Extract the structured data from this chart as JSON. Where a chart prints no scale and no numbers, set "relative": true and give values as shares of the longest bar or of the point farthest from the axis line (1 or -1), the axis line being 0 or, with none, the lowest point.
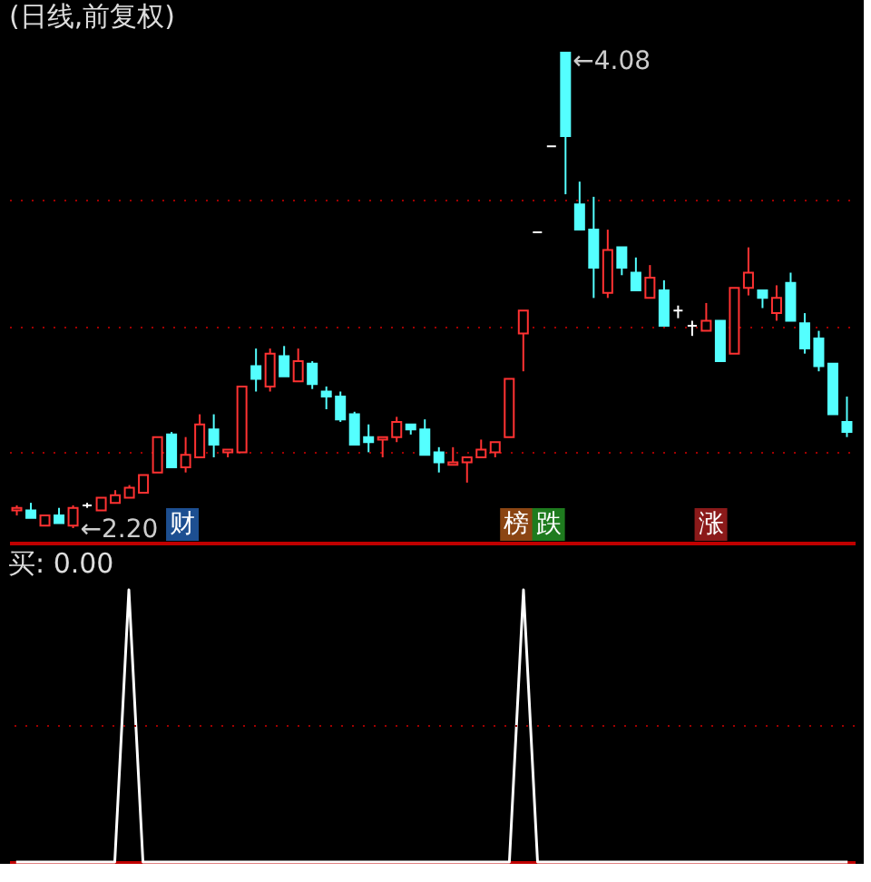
{
  "chart_data": [
    {
      "type": "candlestick",
      "title": "(日线,前复权)",
      "categories": [
        null,
        null,
        null,
        null,
        null,
        null,
        null,
        null,
        null,
        null,
        null,
        null,
        null,
        null,
        null,
        null,
        null,
        null,
        null,
        null,
        null,
        null,
        null,
        null,
        null,
        null,
        null,
        null,
        null,
        null,
        null,
        null,
        null,
        null,
        null,
        null,
        null,
        null,
        null,
        null,
        null,
        null,
        null,
        null,
        null,
        null,
        null,
        null,
        null,
        null,
        null,
        null,
        null,
        null,
        null,
        null,
        null,
        null,
        null,
        null
      ],
      "ohlc": [
        [
          2.27,
          2.29,
          2.25,
          2.28
        ],
        [
          2.27,
          2.3,
          2.24,
          2.24
        ],
        [
          2.21,
          2.25,
          2.21,
          2.25
        ],
        [
          2.25,
          2.28,
          2.22,
          2.22
        ],
        [
          2.21,
          2.29,
          2.2,
          2.28
        ],
        [
          2.29,
          2.3,
          2.28,
          2.29
        ],
        [
          2.27,
          2.32,
          2.27,
          2.32
        ],
        [
          2.3,
          2.35,
          2.3,
          2.33
        ],
        [
          2.32,
          2.37,
          2.32,
          2.36
        ],
        [
          2.34,
          2.41,
          2.34,
          2.41
        ],
        [
          2.42,
          2.56,
          2.42,
          2.56
        ],
        [
          2.57,
          2.58,
          2.44,
          2.44
        ],
        [
          2.44,
          2.56,
          2.42,
          2.49
        ],
        [
          2.48,
          2.65,
          2.48,
          2.61
        ],
        [
          2.59,
          2.65,
          2.48,
          2.53
        ],
        [
          2.5,
          2.51,
          2.48,
          2.51
        ],
        [
          2.5,
          2.76,
          2.5,
          2.76
        ],
        [
          2.84,
          2.91,
          2.74,
          2.79
        ],
        [
          2.76,
          2.91,
          2.74,
          2.89
        ],
        [
          2.88,
          2.92,
          2.8,
          2.8
        ],
        [
          2.78,
          2.91,
          2.78,
          2.86
        ],
        [
          2.85,
          2.86,
          2.75,
          2.77
        ],
        [
          2.74,
          2.76,
          2.67,
          2.72
        ],
        [
          2.72,
          2.74,
          2.62,
          2.63
        ],
        [
          2.65,
          2.66,
          2.53,
          2.53
        ],
        [
          2.56,
          2.61,
          2.5,
          2.54
        ],
        [
          2.55,
          2.56,
          2.48,
          2.56
        ],
        [
          2.56,
          2.64,
          2.54,
          2.62
        ],
        [
          2.61,
          2.61,
          2.57,
          2.59
        ],
        [
          2.59,
          2.63,
          2.49,
          2.49
        ],
        [
          2.5,
          2.52,
          2.42,
          2.46
        ],
        [
          2.45,
          2.52,
          2.45,
          2.46
        ],
        [
          2.46,
          2.48,
          2.38,
          2.48
        ],
        [
          2.48,
          2.55,
          2.48,
          2.51
        ],
        [
          2.5,
          2.54,
          2.48,
          2.54
        ],
        [
          2.56,
          2.79,
          2.56,
          2.79
        ],
        [
          2.97,
          3.06,
          2.82,
          3.06
        ],
        [
          3.37,
          3.37,
          3.37,
          3.37
        ],
        [
          3.71,
          3.71,
          3.71,
          3.71
        ],
        [
          4.08,
          4.08,
          3.52,
          3.75
        ],
        [
          3.48,
          3.57,
          3.38,
          3.38
        ],
        [
          3.38,
          3.51,
          3.11,
          3.23
        ],
        [
          3.13,
          3.38,
          3.11,
          3.3
        ],
        [
          3.31,
          3.31,
          3.2,
          3.23
        ],
        [
          3.21,
          3.27,
          3.14,
          3.14
        ],
        [
          3.11,
          3.24,
          3.11,
          3.19
        ],
        [
          3.14,
          3.18,
          3.0,
          3.0
        ],
        [
          3.06,
          3.08,
          3.03,
          3.06
        ],
        [
          3.0,
          3.02,
          2.96,
          3.0
        ],
        [
          2.98,
          3.09,
          2.98,
          3.02
        ],
        [
          3.02,
          3.02,
          2.86,
          2.86
        ],
        [
          2.89,
          3.15,
          2.89,
          3.15
        ],
        [
          3.15,
          3.31,
          3.12,
          3.21
        ],
        [
          3.14,
          3.14,
          3.07,
          3.11
        ],
        [
          3.05,
          3.16,
          3.02,
          3.11
        ],
        [
          3.17,
          3.21,
          3.02,
          3.02
        ],
        [
          3.01,
          3.05,
          2.89,
          2.91
        ],
        [
          2.95,
          2.98,
          2.82,
          2.84
        ],
        [
          2.85,
          2.85,
          2.65,
          2.65
        ],
        [
          2.62,
          2.72,
          2.56,
          2.58
        ]
      ],
      "colors": [
        "#ff3232",
        "#54ffff",
        "#ff3232",
        "#54ffff",
        "#ff3232",
        "#ffffff",
        "#ff3232",
        "#ff3232",
        "#ff3232",
        "#ff3232",
        "#ff3232",
        "#54ffff",
        "#ff3232",
        "#ff3232",
        "#54ffff",
        "#ff3232",
        "#ff3232",
        "#54ffff",
        "#ff3232",
        "#54ffff",
        "#ff3232",
        "#54ffff",
        "#54ffff",
        "#54ffff",
        "#54ffff",
        "#54ffff",
        "#ff3232",
        "#ff3232",
        "#54ffff",
        "#54ffff",
        "#54ffff",
        "#ff3232",
        "#ff3232",
        "#ff3232",
        "#ff3232",
        "#ff3232",
        "#ff3232",
        "#ffffff",
        "#ffffff",
        "#54ffff",
        "#54ffff",
        "#54ffff",
        "#ff3232",
        "#54ffff",
        "#54ffff",
        "#ff3232",
        "#54ffff",
        "#ffffff",
        "#ffffff",
        "#ff3232",
        "#54ffff",
        "#ff3232",
        "#ff3232",
        "#54ffff",
        "#ff3232",
        "#54ffff",
        "#54ffff",
        "#54ffff",
        "#54ffff",
        "#54ffff"
      ],
      "yticks": [
        {
          "value": 2.5,
          "label": null
        },
        {
          "value": 3.0,
          "label": null
        },
        {
          "value": 3.5,
          "label": null
        }
      ],
      "grid": "y",
      "line_style": "dotted",
      "tick_labels": false,
      "annotations": [
        "←4.08",
        "←2.20",
        "财",
        "榜",
        "跌",
        "涨"
      ]
    },
    {
      "type": "line",
      "title": "买: 0.00",
      "relative": true,
      "tick_labels": false,
      "categories": [
        null,
        null,
        null,
        null,
        null,
        null,
        null,
        null,
        null,
        null,
        null,
        null,
        null,
        null,
        null,
        null,
        null,
        null,
        null,
        null,
        null,
        null,
        null,
        null,
        null,
        null,
        null,
        null,
        null,
        null,
        null,
        null,
        null,
        null,
        null,
        null,
        null,
        null,
        null,
        null,
        null,
        null,
        null,
        null,
        null,
        null,
        null,
        null,
        null,
        null,
        null,
        null,
        null,
        null,
        null,
        null,
        null,
        null,
        null,
        null
      ],
      "series": [
        {
          "color": "#ffffff",
          "values": [
            0,
            0,
            0,
            0,
            0,
            0,
            0,
            0,
            1,
            0,
            0,
            0,
            0,
            0,
            0,
            0,
            0,
            0,
            0,
            0,
            0,
            0,
            0,
            0,
            0,
            0,
            0,
            0,
            0,
            0,
            0,
            0,
            0,
            0,
            0,
            0,
            1,
            0,
            0,
            0,
            0,
            0,
            0,
            0,
            0,
            0,
            0,
            0,
            0,
            0,
            0,
            0,
            0,
            0,
            0,
            0,
            0,
            0,
            0,
            0
          ]
        }
      ],
      "ref_lines": [
        {
          "axis": "y",
          "value": 0.5,
          "color": "#a00000",
          "line_style": "dotted"
        }
      ]
    }
  ]
}
